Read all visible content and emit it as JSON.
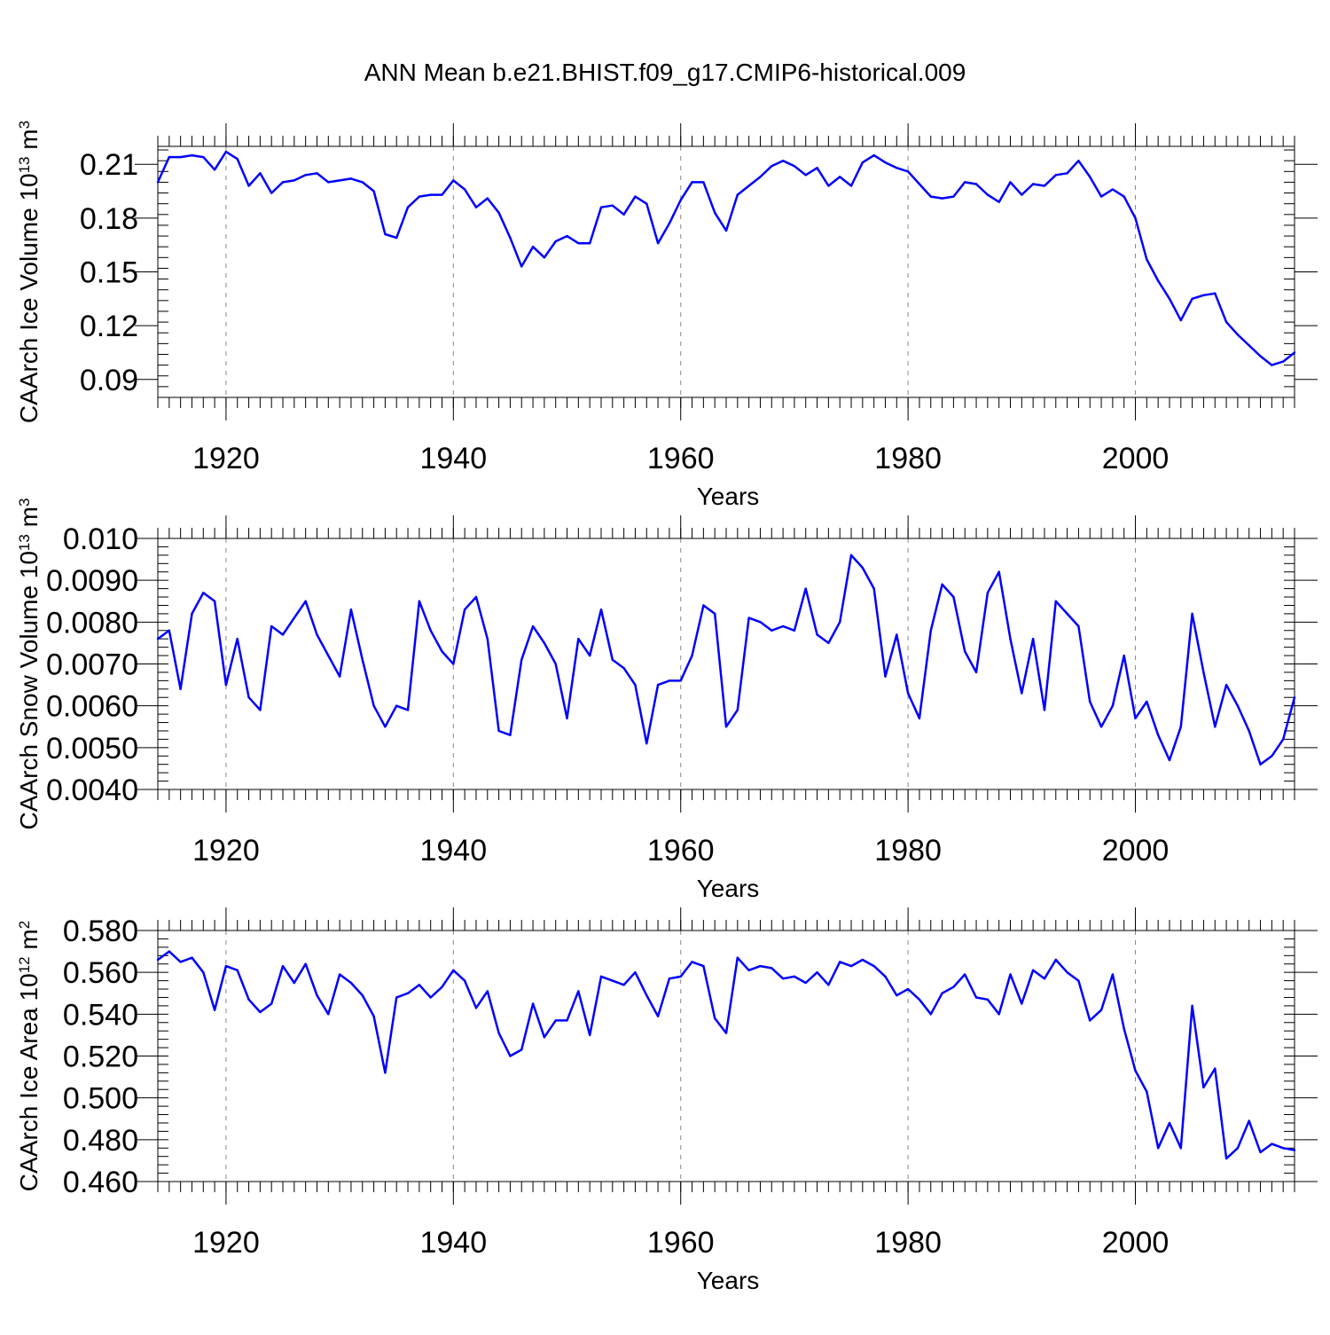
{
  "title": "ANN Mean b.e21.BHIST.f09_g17.CMIP6-historical.009",
  "colors": {
    "line": "#0000ff",
    "axis": "#000000",
    "grid": "#888888"
  },
  "chart_data": [
    {
      "type": "line",
      "ylabel": {
        "text": "CAArch Ice Volume 10",
        "sup": "13",
        "unit": " m",
        "unit_sup": "3"
      },
      "xlabel": "Years",
      "xlim": [
        1914,
        2014
      ],
      "ylim": [
        0.08,
        0.22
      ],
      "yticks": [
        0.09,
        0.12,
        0.15,
        0.18,
        0.21
      ],
      "ytick_labels": [
        "0.09",
        "0.12",
        "0.15",
        "0.18",
        "0.21"
      ],
      "xticks": [
        1920,
        1940,
        1960,
        1980,
        2000
      ],
      "xtick_labels": [
        "1920",
        "1940",
        "1960",
        "1980",
        "2000"
      ],
      "grid": "x-dashed",
      "x": [
        1914,
        1915,
        1916,
        1917,
        1918,
        1919,
        1920,
        1921,
        1922,
        1923,
        1924,
        1925,
        1926,
        1927,
        1928,
        1929,
        1930,
        1931,
        1932,
        1933,
        1934,
        1935,
        1936,
        1937,
        1938,
        1939,
        1940,
        1941,
        1942,
        1943,
        1944,
        1945,
        1946,
        1947,
        1948,
        1949,
        1950,
        1951,
        1952,
        1953,
        1954,
        1955,
        1956,
        1957,
        1958,
        1959,
        1960,
        1961,
        1962,
        1963,
        1964,
        1965,
        1966,
        1967,
        1968,
        1969,
        1970,
        1971,
        1972,
        1973,
        1974,
        1975,
        1976,
        1977,
        1978,
        1979,
        1980,
        1981,
        1982,
        1983,
        1984,
        1985,
        1986,
        1987,
        1988,
        1989,
        1990,
        1991,
        1992,
        1993,
        1994,
        1995,
        1996,
        1997,
        1998,
        1999,
        2000,
        2001,
        2002,
        2003,
        2004,
        2005,
        2006,
        2007,
        2008,
        2009,
        2010,
        2011,
        2012,
        2013,
        2014
      ],
      "values": [
        0.2,
        0.214,
        0.214,
        0.215,
        0.214,
        0.207,
        0.217,
        0.213,
        0.198,
        0.205,
        0.194,
        0.2,
        0.201,
        0.204,
        0.205,
        0.2,
        0.201,
        0.202,
        0.2,
        0.195,
        0.171,
        0.169,
        0.186,
        0.192,
        0.193,
        0.193,
        0.201,
        0.196,
        0.186,
        0.191,
        0.183,
        0.169,
        0.153,
        0.164,
        0.158,
        0.167,
        0.17,
        0.166,
        0.166,
        0.186,
        0.187,
        0.182,
        0.192,
        0.188,
        0.166,
        0.177,
        0.19,
        0.2,
        0.2,
        0.183,
        0.173,
        0.193,
        0.198,
        0.203,
        0.209,
        0.212,
        0.209,
        0.204,
        0.208,
        0.198,
        0.203,
        0.198,
        0.211,
        0.215,
        0.211,
        0.208,
        0.206,
        0.199,
        0.192,
        0.191,
        0.192,
        0.2,
        0.199,
        0.193,
        0.189,
        0.2,
        0.193,
        0.199,
        0.198,
        0.204,
        0.205,
        0.212,
        0.203,
        0.192,
        0.196,
        0.192,
        0.18,
        0.157,
        0.145,
        0.135,
        0.123,
        0.135,
        0.137,
        0.138,
        0.122,
        0.115,
        0.109,
        0.103,
        0.098,
        0.1,
        0.105
      ]
    },
    {
      "type": "line",
      "ylabel": {
        "text": "CAArch Snow Volume 10",
        "sup": "13",
        "unit": " m",
        "unit_sup": "3"
      },
      "xlabel": "Years",
      "xlim": [
        1914,
        2014
      ],
      "ylim": [
        0.004,
        0.01
      ],
      "yticks": [
        0.004,
        0.005,
        0.006,
        0.007,
        0.008,
        0.009,
        0.01
      ],
      "ytick_labels": [
        "0.0040",
        "0.0050",
        "0.0060",
        "0.0070",
        "0.0080",
        "0.0090",
        "0.010"
      ],
      "xticks": [
        1920,
        1940,
        1960,
        1980,
        2000
      ],
      "xtick_labels": [
        "1920",
        "1940",
        "1960",
        "1980",
        "2000"
      ],
      "grid": "x-dashed",
      "x": [
        1914,
        1915,
        1916,
        1917,
        1918,
        1919,
        1920,
        1921,
        1922,
        1923,
        1924,
        1925,
        1926,
        1927,
        1928,
        1929,
        1930,
        1931,
        1932,
        1933,
        1934,
        1935,
        1936,
        1937,
        1938,
        1939,
        1940,
        1941,
        1942,
        1943,
        1944,
        1945,
        1946,
        1947,
        1948,
        1949,
        1950,
        1951,
        1952,
        1953,
        1954,
        1955,
        1956,
        1957,
        1958,
        1959,
        1960,
        1961,
        1962,
        1963,
        1964,
        1965,
        1966,
        1967,
        1968,
        1969,
        1970,
        1971,
        1972,
        1973,
        1974,
        1975,
        1976,
        1977,
        1978,
        1979,
        1980,
        1981,
        1982,
        1983,
        1984,
        1985,
        1986,
        1987,
        1988,
        1989,
        1990,
        1991,
        1992,
        1993,
        1994,
        1995,
        1996,
        1997,
        1998,
        1999,
        2000,
        2001,
        2002,
        2003,
        2004,
        2005,
        2006,
        2007,
        2008,
        2009,
        2010,
        2011,
        2012,
        2013,
        2014
      ],
      "values": [
        0.0076,
        0.0078,
        0.0064,
        0.0082,
        0.0087,
        0.0085,
        0.0065,
        0.0076,
        0.0062,
        0.0059,
        0.0079,
        0.0077,
        0.0081,
        0.0085,
        0.0077,
        0.0072,
        0.0067,
        0.0083,
        0.0071,
        0.006,
        0.0055,
        0.006,
        0.0059,
        0.0085,
        0.0078,
        0.0073,
        0.007,
        0.0083,
        0.0086,
        0.0076,
        0.0054,
        0.0053,
        0.0071,
        0.0079,
        0.0075,
        0.007,
        0.0057,
        0.0076,
        0.0072,
        0.0083,
        0.0071,
        0.0069,
        0.0065,
        0.0051,
        0.0065,
        0.0066,
        0.0066,
        0.0072,
        0.0084,
        0.0082,
        0.0055,
        0.0059,
        0.0081,
        0.008,
        0.0078,
        0.0079,
        0.0078,
        0.0088,
        0.0077,
        0.0075,
        0.008,
        0.0096,
        0.0093,
        0.0088,
        0.0067,
        0.0077,
        0.0063,
        0.0057,
        0.0078,
        0.0089,
        0.0086,
        0.0073,
        0.0068,
        0.0087,
        0.0092,
        0.0076,
        0.0063,
        0.0076,
        0.0059,
        0.0085,
        0.0082,
        0.0079,
        0.0061,
        0.0055,
        0.006,
        0.0072,
        0.0057,
        0.0061,
        0.0053,
        0.0047,
        0.0055,
        0.0082,
        0.0068,
        0.0055,
        0.0065,
        0.006,
        0.0054,
        0.0046,
        0.0048,
        0.0052,
        0.0062
      ]
    },
    {
      "type": "line",
      "ylabel": {
        "text": "CAArch Ice Area 10",
        "sup": "12",
        "unit": " m",
        "unit_sup": "2"
      },
      "xlabel": "Years",
      "xlim": [
        1914,
        2014
      ],
      "ylim": [
        0.46,
        0.58
      ],
      "yticks": [
        0.46,
        0.48,
        0.5,
        0.52,
        0.54,
        0.56,
        0.58
      ],
      "ytick_labels": [
        "0.460",
        "0.480",
        "0.500",
        "0.520",
        "0.540",
        "0.560",
        "0.580"
      ],
      "xticks": [
        1920,
        1940,
        1960,
        1980,
        2000
      ],
      "xtick_labels": [
        "1920",
        "1940",
        "1960",
        "1980",
        "2000"
      ],
      "grid": "x-dashed",
      "x": [
        1914,
        1915,
        1916,
        1917,
        1918,
        1919,
        1920,
        1921,
        1922,
        1923,
        1924,
        1925,
        1926,
        1927,
        1928,
        1929,
        1930,
        1931,
        1932,
        1933,
        1934,
        1935,
        1936,
        1937,
        1938,
        1939,
        1940,
        1941,
        1942,
        1943,
        1944,
        1945,
        1946,
        1947,
        1948,
        1949,
        1950,
        1951,
        1952,
        1953,
        1954,
        1955,
        1956,
        1957,
        1958,
        1959,
        1960,
        1961,
        1962,
        1963,
        1964,
        1965,
        1966,
        1967,
        1968,
        1969,
        1970,
        1971,
        1972,
        1973,
        1974,
        1975,
        1976,
        1977,
        1978,
        1979,
        1980,
        1981,
        1982,
        1983,
        1984,
        1985,
        1986,
        1987,
        1988,
        1989,
        1990,
        1991,
        1992,
        1993,
        1994,
        1995,
        1996,
        1997,
        1998,
        1999,
        2000,
        2001,
        2002,
        2003,
        2004,
        2005,
        2006,
        2007,
        2008,
        2009,
        2010,
        2011,
        2012,
        2013,
        2014
      ],
      "values": [
        0.566,
        0.57,
        0.565,
        0.567,
        0.56,
        0.542,
        0.563,
        0.561,
        0.547,
        0.541,
        0.545,
        0.563,
        0.555,
        0.564,
        0.549,
        0.54,
        0.559,
        0.555,
        0.549,
        0.539,
        0.512,
        0.548,
        0.55,
        0.554,
        0.548,
        0.553,
        0.561,
        0.556,
        0.543,
        0.551,
        0.531,
        0.52,
        0.523,
        0.545,
        0.529,
        0.537,
        0.537,
        0.551,
        0.53,
        0.558,
        0.556,
        0.554,
        0.56,
        0.549,
        0.539,
        0.557,
        0.558,
        0.565,
        0.563,
        0.538,
        0.531,
        0.567,
        0.561,
        0.563,
        0.562,
        0.557,
        0.558,
        0.555,
        0.56,
        0.554,
        0.565,
        0.563,
        0.566,
        0.563,
        0.558,
        0.549,
        0.552,
        0.547,
        0.54,
        0.55,
        0.553,
        0.559,
        0.548,
        0.547,
        0.54,
        0.559,
        0.545,
        0.561,
        0.557,
        0.566,
        0.56,
        0.556,
        0.537,
        0.542,
        0.559,
        0.533,
        0.513,
        0.503,
        0.476,
        0.488,
        0.476,
        0.544,
        0.505,
        0.514,
        0.471,
        0.476,
        0.489,
        0.474,
        0.478,
        0.476,
        0.475
      ]
    }
  ]
}
